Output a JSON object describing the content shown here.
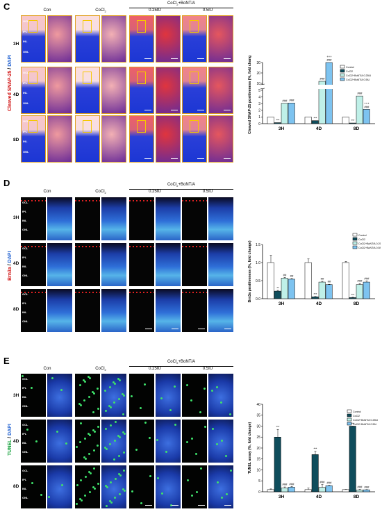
{
  "colors": {
    "control": "#ffffff",
    "cocl2": "#0f4d5c",
    "bont025": "#bff0e8",
    "bont05": "#7dc3f0"
  },
  "panels": [
    {
      "letter": "C",
      "stain": {
        "marker": "Cleaved SNAP-25",
        "sep": " / ",
        "counter": "DAPI"
      },
      "columns": {
        "con": "Con",
        "cocl": "CoCl",
        "cocl_sub": "2",
        "group": "CoCl",
        "group_sub": "2",
        "group_rest": "+BoNT/A",
        "d025": "0.25IU",
        "d05": "0.5IU"
      },
      "rows": [
        "3H",
        "4D",
        "8D"
      ],
      "layers": [
        "GCL",
        "IPL",
        "INL",
        "ONL"
      ],
      "chart_data": {
        "type": "bar",
        "categories": [
          "3H",
          "4D",
          "8D"
        ],
        "ylabel": "Cleaved SNAP-25 positiveness (%, fold change)",
        "yticks_lower": [
          "0",
          "1",
          "2",
          "3",
          "4",
          "5"
        ],
        "yticks_upper": [
          "10",
          "20",
          "30"
        ],
        "axis_break": true,
        "series": [
          {
            "name": "Control",
            "values": [
              1,
              1,
              1
            ]
          },
          {
            "name": "CoCl2",
            "values": [
              0.15,
              0.45,
              0.1
            ]
          },
          {
            "name": "CoCl2+BoNT/A 0.25IU",
            "values": [
              3.05,
              12,
              4.15
            ]
          },
          {
            "name": "CoCl2+BoNT/A 0.5IU",
            "values": [
              3.1,
              30,
              2.15
            ]
          }
        ],
        "annotations": [
          {
            "cat": "3H",
            "series": 1,
            "text": "***"
          },
          {
            "cat": "3H",
            "series": 2,
            "text": "###"
          },
          {
            "cat": "3H",
            "series": 3,
            "text": "###"
          },
          {
            "cat": "4D",
            "series": 1,
            "text": "***"
          },
          {
            "cat": "4D",
            "series": 2,
            "text": "###"
          },
          {
            "cat": "4D",
            "series": 3,
            "text": "###"
          },
          {
            "cat": "4D",
            "series": 3,
            "text": "+++"
          },
          {
            "cat": "8D",
            "series": 1,
            "text": "***"
          },
          {
            "cat": "8D",
            "series": 2,
            "text": "###"
          },
          {
            "cat": "8D",
            "series": 3,
            "text": "###"
          },
          {
            "cat": "8D",
            "series": 3,
            "text": "+++"
          }
        ]
      }
    },
    {
      "letter": "D",
      "stain": {
        "marker": "Brn3a",
        "sep": " / ",
        "counter": "DAPI"
      },
      "columns": {
        "con": "Con",
        "cocl": "CoCl",
        "cocl_sub": "2",
        "group": "CoCl",
        "group_sub": "2",
        "group_rest": "+BoNT/A",
        "d025": "0.25IU",
        "d05": "0.5IU"
      },
      "rows": [
        "3H",
        "4D",
        "8D"
      ],
      "layers": [
        "GCL",
        "IPL",
        "INL",
        "ONL"
      ],
      "chart_data": {
        "type": "bar",
        "categories": [
          "3H",
          "4D",
          "8D"
        ],
        "ylabel": "Brn3a positiveness (%, fold change)",
        "ylim": [
          0,
          1.5
        ],
        "yticks": [
          "0.0",
          "0.5",
          "1.0",
          "1.5"
        ],
        "series": [
          {
            "name": "Control",
            "values": [
              1.0,
              1.0,
              1.0
            ]
          },
          {
            "name": "CoCl2",
            "values": [
              0.21,
              0.05,
              0.03
            ]
          },
          {
            "name": "CoCl2+BoNT/A 0.25IU",
            "values": [
              0.57,
              0.46,
              0.39
            ]
          },
          {
            "name": "CoCl2+BoNT/A 0.5IU",
            "values": [
              0.54,
              0.39,
              0.46
            ]
          }
        ],
        "errors": [
          [
            0.2,
            0.1,
            0.03
          ],
          [
            0.02,
            0.01,
            0.01
          ],
          [
            0.02,
            0.02,
            0.03
          ],
          [
            0.02,
            0.01,
            0.03
          ]
        ],
        "annotations": [
          {
            "cat": "3H",
            "series": 1,
            "text": "**"
          },
          {
            "cat": "3H",
            "series": 2,
            "text": "##"
          },
          {
            "cat": "3H",
            "series": 3,
            "text": "##"
          },
          {
            "cat": "4D",
            "series": 1,
            "text": "***"
          },
          {
            "cat": "4D",
            "series": 2,
            "text": "##"
          },
          {
            "cat": "4D",
            "series": 3,
            "text": "##"
          },
          {
            "cat": "8D",
            "series": 1,
            "text": "***"
          },
          {
            "cat": "8D",
            "series": 2,
            "text": "###"
          },
          {
            "cat": "8D",
            "series": 3,
            "text": "###"
          }
        ]
      }
    },
    {
      "letter": "E",
      "stain": {
        "marker": "TUNEL",
        "sep": " / ",
        "counter": "DAPI"
      },
      "columns": {
        "con": "Con",
        "cocl": "CoCl",
        "cocl_sub": "2",
        "group": "CoCl",
        "group_sub": "2",
        "group_rest": "+BoNT/A",
        "d025": "0.25IU",
        "d05": "0.5IU"
      },
      "rows": [
        "3H",
        "4D",
        "8D"
      ],
      "layers": [
        "GCL",
        "IPL",
        "INL",
        "ONL"
      ],
      "chart_data": {
        "type": "bar",
        "categories": [
          "3H",
          "4D",
          "8D"
        ],
        "ylabel": "TUNEL assay (%, fold change)",
        "ylim": [
          0,
          40
        ],
        "yticks": [
          "0",
          "5",
          "10",
          "15",
          "20",
          "25",
          "30",
          "35",
          "40"
        ],
        "series": [
          {
            "name": "Control",
            "values": [
              1.0,
              1.0,
              1.0
            ]
          },
          {
            "name": "CoCl2",
            "values": [
              25,
              17,
              30
            ]
          },
          {
            "name": "CoCl2+BoNT/A 0.25IU",
            "values": [
              1.7,
              2.0,
              0.8
            ]
          },
          {
            "name": "CoCl2+BoNT/A 0.5IU",
            "values": [
              2.1,
              2.8,
              0.9
            ]
          }
        ],
        "errors": [
          [
            0.3,
            0.7,
            0.1
          ],
          [
            3.5,
            1.5,
            0
          ],
          [
            0.5,
            1.3,
            0.3
          ],
          [
            0.3,
            0.2,
            0.1
          ]
        ],
        "annotations": [
          {
            "cat": "3H",
            "series": 1,
            "text": "***"
          },
          {
            "cat": "3H",
            "series": 2,
            "text": "###"
          },
          {
            "cat": "3H",
            "series": 3,
            "text": "###"
          },
          {
            "cat": "4D",
            "series": 1,
            "text": "***"
          },
          {
            "cat": "4D",
            "series": 2,
            "text": "###"
          },
          {
            "cat": "4D",
            "series": 3,
            "text": "###"
          },
          {
            "cat": "8D",
            "series": 1,
            "text": "***"
          },
          {
            "cat": "8D",
            "series": 2,
            "text": "###"
          },
          {
            "cat": "8D",
            "series": 3,
            "text": "###"
          }
        ]
      }
    }
  ]
}
